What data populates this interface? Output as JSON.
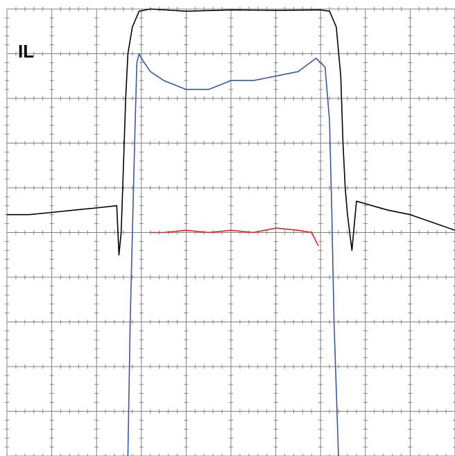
{
  "chart_data": {
    "type": "line",
    "title": "",
    "xlabel": "",
    "ylabel": "",
    "grid": true,
    "legend": "none",
    "trace_label": "IL",
    "xlim": [
      0,
      10
    ],
    "ylim": [
      -5,
      5
    ],
    "colors": {
      "background": "#ffffff",
      "grid": "#808080",
      "black_trace": "#000000",
      "blue_trace": "#3a56a6",
      "red_trace": "#e32020"
    },
    "series": [
      {
        "color": "#000000",
        "points": [
          [
            0.0,
            0.4
          ],
          [
            0.5,
            0.4
          ],
          [
            1.0,
            0.45
          ],
          [
            1.5,
            0.5
          ],
          [
            2.0,
            0.55
          ],
          [
            2.45,
            0.6
          ],
          [
            2.5,
            -0.5
          ],
          [
            2.55,
            0.0
          ],
          [
            2.6,
            1.5
          ],
          [
            2.65,
            3.0
          ],
          [
            2.7,
            4.0
          ],
          [
            2.8,
            4.6
          ],
          [
            2.95,
            4.95
          ],
          [
            3.2,
            5.0
          ],
          [
            4.0,
            4.95
          ],
          [
            5.0,
            4.98
          ],
          [
            6.0,
            4.97
          ],
          [
            7.0,
            4.98
          ],
          [
            7.2,
            4.95
          ],
          [
            7.35,
            4.6
          ],
          [
            7.45,
            3.5
          ],
          [
            7.5,
            2.0
          ],
          [
            7.55,
            1.0
          ],
          [
            7.6,
            0.4
          ],
          [
            7.7,
            -0.4
          ],
          [
            7.8,
            0.7
          ],
          [
            8.5,
            0.5
          ],
          [
            9.0,
            0.4
          ],
          [
            10.0,
            0.05
          ]
        ]
      },
      {
        "color": "#3a56a6",
        "points": [
          [
            2.7,
            -5.0
          ],
          [
            2.75,
            -2.0
          ],
          [
            2.8,
            0.0
          ],
          [
            2.85,
            2.0
          ],
          [
            2.9,
            3.8
          ],
          [
            2.95,
            4.0
          ],
          [
            3.0,
            3.9
          ],
          [
            3.2,
            3.6
          ],
          [
            3.5,
            3.4
          ],
          [
            4.0,
            3.2
          ],
          [
            4.5,
            3.2
          ],
          [
            5.0,
            3.4
          ],
          [
            5.5,
            3.4
          ],
          [
            6.0,
            3.5
          ],
          [
            6.5,
            3.6
          ],
          [
            6.9,
            3.9
          ],
          [
            7.1,
            3.7
          ],
          [
            7.2,
            2.5
          ],
          [
            7.25,
            0.5
          ],
          [
            7.3,
            -2.0
          ],
          [
            7.4,
            -5.0
          ]
        ]
      },
      {
        "color": "#e32020",
        "points": [
          [
            3.2,
            0.0
          ],
          [
            3.5,
            0.0
          ],
          [
            4.0,
            0.05
          ],
          [
            4.5,
            0.0
          ],
          [
            5.0,
            0.05
          ],
          [
            5.5,
            0.0
          ],
          [
            6.0,
            0.1
          ],
          [
            6.5,
            0.05
          ],
          [
            6.8,
            0.0
          ],
          [
            6.95,
            -0.3
          ]
        ]
      }
    ]
  }
}
